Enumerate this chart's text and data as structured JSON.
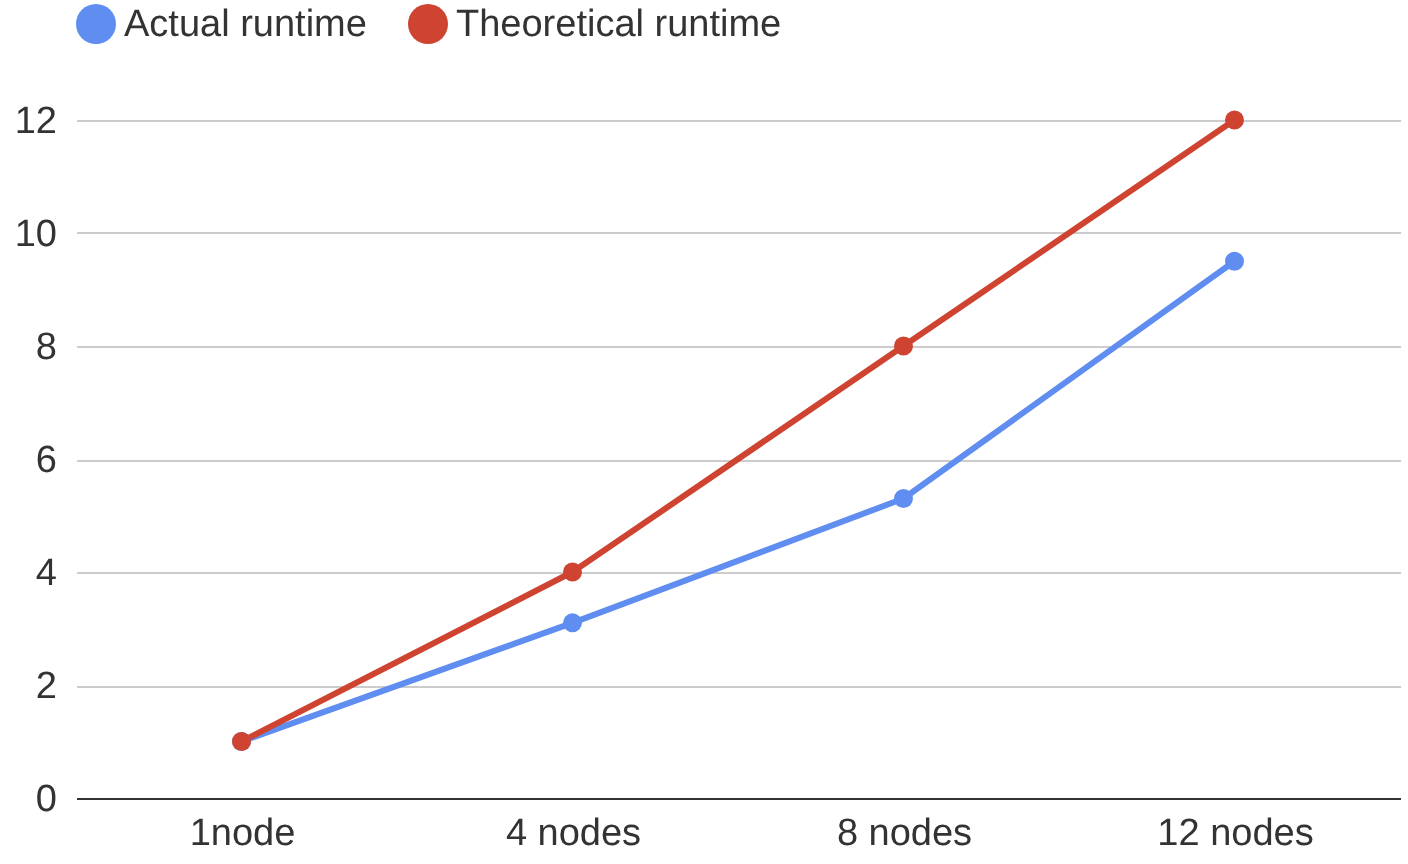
{
  "chart_data": {
    "type": "line",
    "categories": [
      "1node",
      "4 nodes",
      "8 nodes",
      "12 nodes"
    ],
    "series": [
      {
        "name": "Actual runtime",
        "color": "#5f8df0",
        "values": [
          1,
          3.1,
          5.3,
          9.5
        ]
      },
      {
        "name": "Theoretical runtime",
        "color": "#cf4331",
        "values": [
          1,
          4,
          8,
          12
        ]
      }
    ],
    "ylim": [
      0,
      12
    ],
    "yticks": [
      0,
      2,
      4,
      6,
      8,
      10,
      12
    ],
    "grid": "y",
    "legend": "top",
    "marker": "circle"
  }
}
